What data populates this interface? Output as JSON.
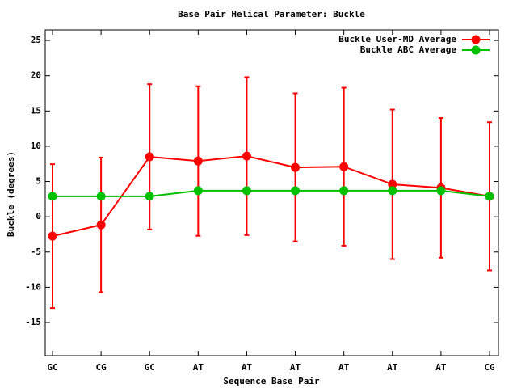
{
  "chart_data": {
    "type": "line",
    "title": "Base Pair Helical Parameter: Buckle",
    "x_label": "Sequence Base Pair",
    "y_label": "Buckle (degrees)",
    "categories": [
      "GC",
      "CG",
      "GC",
      "AT",
      "AT",
      "AT",
      "AT",
      "AT",
      "AT",
      "CG"
    ],
    "series": [
      {
        "name": "Buckle User-MD Average",
        "color": "#ff0000",
        "values": [
          -2.75,
          -1.15,
          8.5,
          7.9,
          8.6,
          7.0,
          7.1,
          4.6,
          4.1,
          2.9
        ],
        "errors": [
          10.2,
          9.55,
          10.3,
          10.6,
          11.2,
          10.5,
          11.2,
          10.6,
          9.9,
          10.5
        ]
      },
      {
        "name": "Buckle ABC Average",
        "color": "#00c000",
        "values": [
          2.9,
          2.9,
          2.9,
          3.7,
          3.7,
          3.7,
          3.7,
          3.7,
          3.7,
          2.9
        ]
      }
    ],
    "ylim": [
      -19.7,
      26.5
    ],
    "yticks": [
      -15,
      -10,
      -5,
      0,
      5,
      10,
      15,
      20,
      25
    ],
    "legend": "top-right"
  }
}
